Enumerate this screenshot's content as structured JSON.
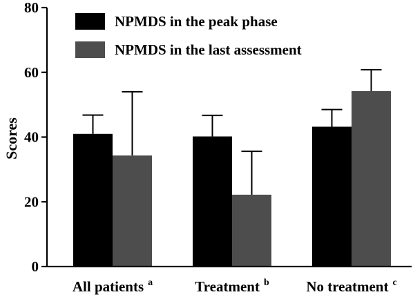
{
  "chart_data": {
    "type": "bar",
    "ylabel": "Scores",
    "ylim": [
      0,
      80
    ],
    "yticks": [
      0,
      20,
      40,
      60,
      80
    ],
    "categories": [
      {
        "label": "All patients",
        "sup": "a"
      },
      {
        "label": "Treatment",
        "sup": "b"
      },
      {
        "label": "No treatment",
        "sup": "c"
      }
    ],
    "series": [
      {
        "name": "NPMDS in the peak phase",
        "color": "#000000",
        "values": [
          41,
          40.2,
          43.2
        ],
        "errors": [
          5.8,
          6.5,
          5.3
        ]
      },
      {
        "name": "NPMDS in the last assessment",
        "color": "#4d4d4d",
        "values": [
          34.3,
          22.2,
          54.2
        ],
        "errors": [
          19.7,
          13.4,
          6.6
        ]
      }
    ],
    "legend_position": "top-left",
    "grid": false
  }
}
